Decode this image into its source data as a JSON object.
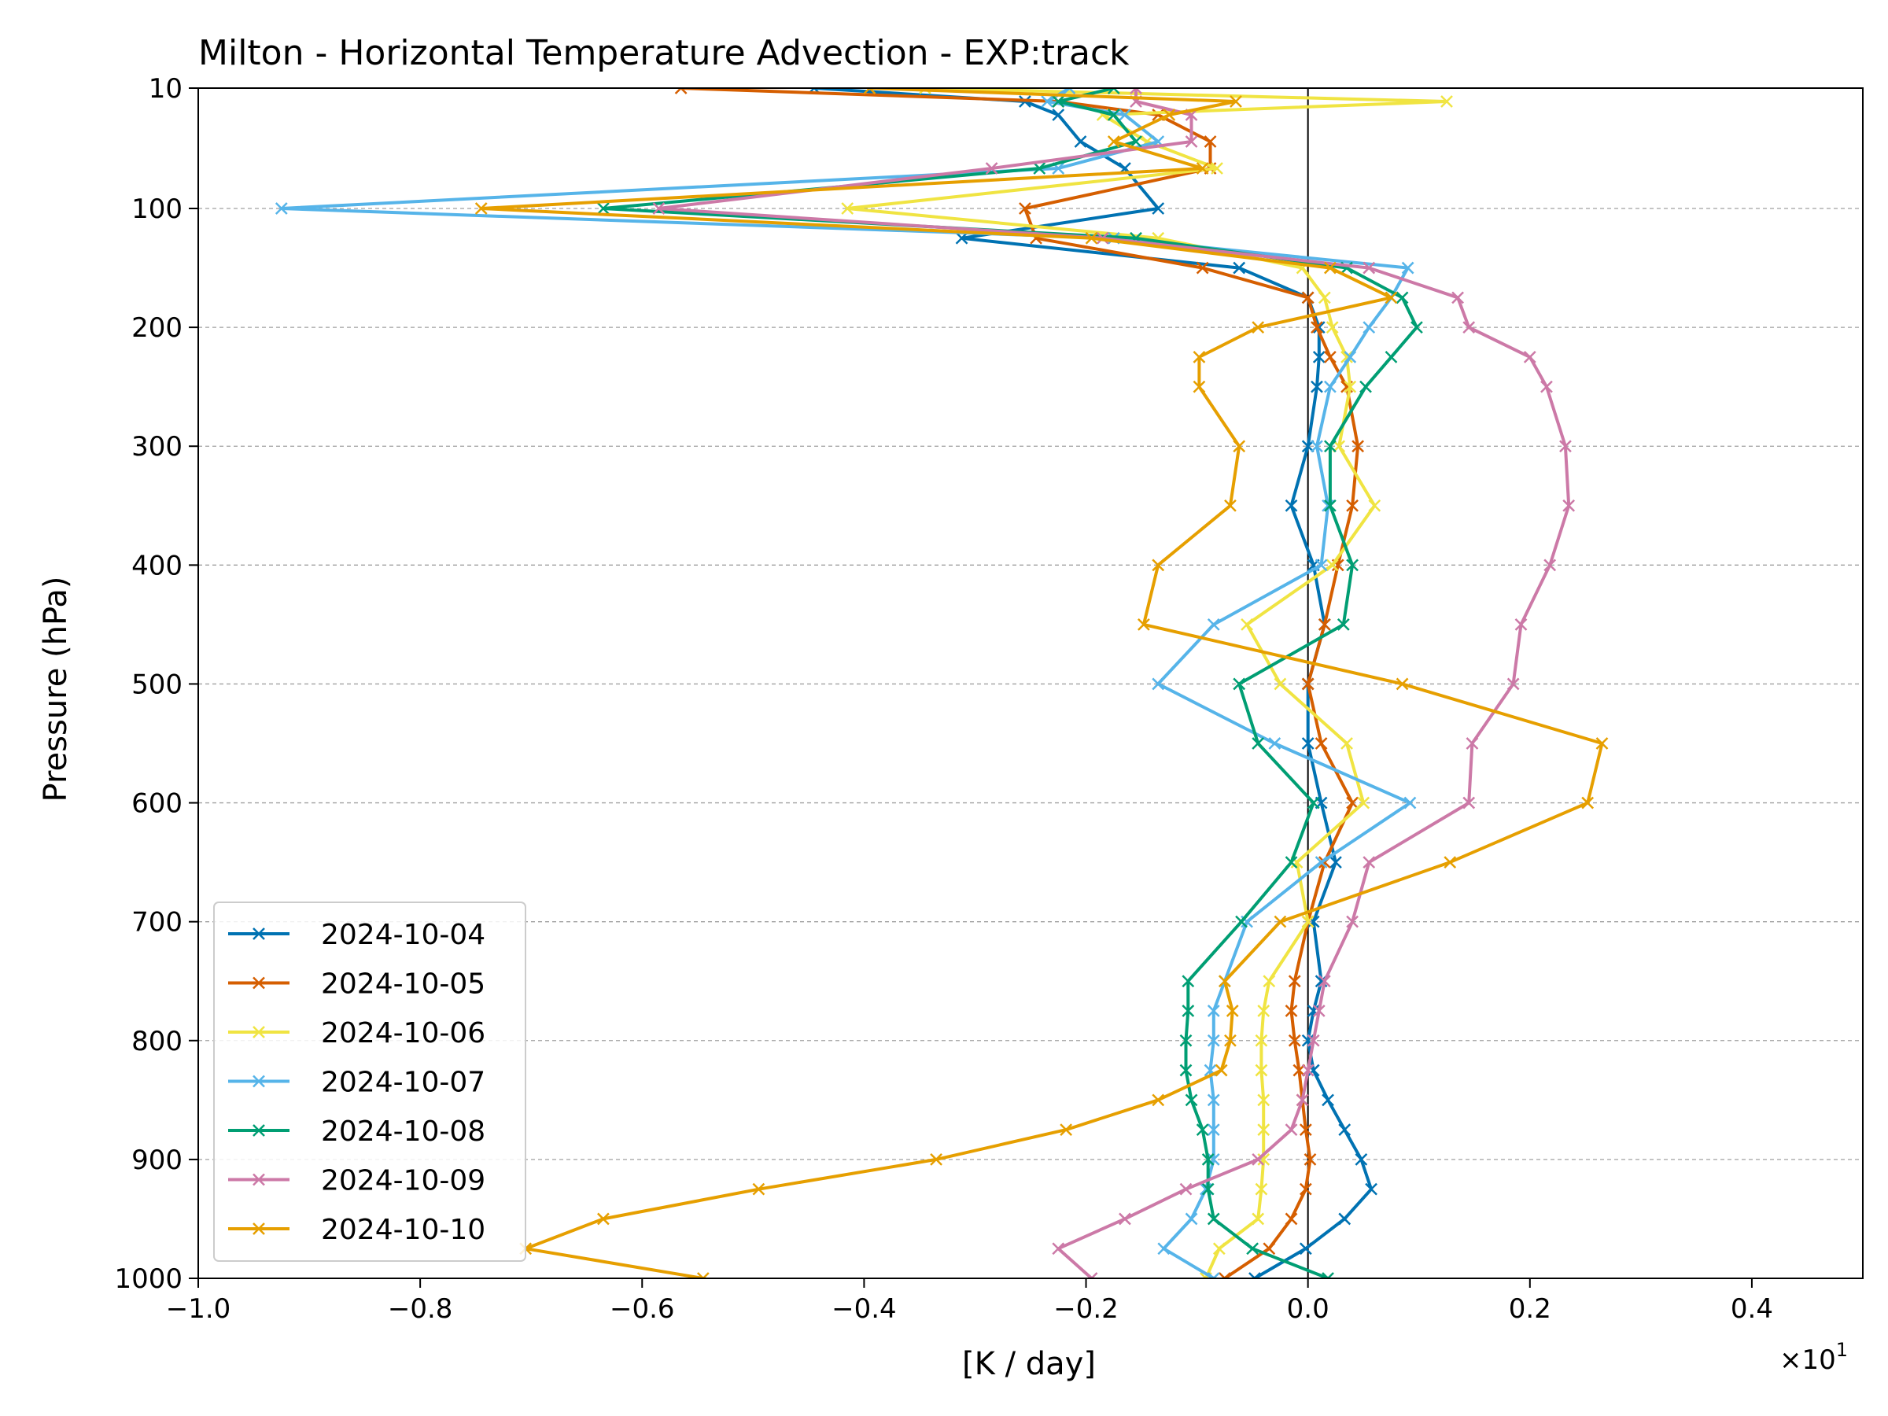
{
  "chart_data": {
    "type": "line",
    "title": "Milton - Horizontal Temperature Advection - EXP:track",
    "xlabel": "[K / day]",
    "ylabel": "Pressure (hPa)",
    "x_multiplier": "×10",
    "x_multiplier_exponent": "1",
    "xlim": [
      -1.0,
      0.5
    ],
    "ylim": [
      1000,
      10
    ],
    "y_inverted": true,
    "xticks": [
      -1.0,
      -0.8,
      -0.6,
      -0.4,
      -0.2,
      0.0,
      0.2,
      0.4
    ],
    "xtick_labels": [
      "−1.0",
      "−0.8",
      "−0.6",
      "−0.4",
      "−0.2",
      "0.0",
      "0.2",
      "0.4"
    ],
    "yticks": [
      10,
      100,
      200,
      300,
      400,
      500,
      600,
      700,
      800,
      900,
      1000
    ],
    "ytick_labels": [
      "10",
      "100",
      "200",
      "300",
      "400",
      "500",
      "600",
      "700",
      "800",
      "900",
      "1000"
    ],
    "grid": "horizontal dashed at y ticks",
    "zero_line": 0.0,
    "marker": "x",
    "legend_position": "lower-left",
    "levels": [
      10,
      20,
      30,
      50,
      70,
      100,
      125,
      150,
      175,
      200,
      225,
      250,
      300,
      350,
      400,
      450,
      500,
      550,
      600,
      650,
      700,
      750,
      775,
      800,
      825,
      850,
      875,
      900,
      925,
      950,
      975,
      1000
    ],
    "series": [
      {
        "name": "2024-10-04",
        "color": "#0072b2",
        "values": [
          -0.445,
          -0.255,
          -0.225,
          -0.205,
          -0.165,
          -0.135,
          -0.312,
          -0.062,
          0.0,
          0.01,
          0.01,
          0.008,
          0.0,
          -0.015,
          0.005,
          0.015,
          0.0,
          0.0,
          0.012,
          0.025,
          0.005,
          0.012,
          0.005,
          0.0,
          0.005,
          0.018,
          0.033,
          0.048,
          0.057,
          0.033,
          -0.002,
          -0.048
        ]
      },
      {
        "name": "2024-10-05",
        "color": "#d55e00",
        "values": [
          -0.565,
          -0.225,
          -0.135,
          -0.088,
          -0.088,
          -0.255,
          -0.245,
          -0.095,
          0.0,
          0.008,
          0.02,
          0.035,
          0.045,
          0.04,
          0.027,
          0.015,
          0.0,
          0.012,
          0.04,
          0.015,
          0.0,
          -0.012,
          -0.015,
          -0.012,
          -0.008,
          -0.005,
          -0.002,
          0.002,
          -0.002,
          -0.015,
          -0.035,
          -0.075
        ]
      },
      {
        "name": "2024-10-06",
        "color": "#f0e442",
        "values": [
          -0.345,
          0.125,
          -0.185,
          -0.145,
          -0.082,
          -0.415,
          -0.135,
          -0.005,
          0.015,
          0.022,
          0.035,
          0.038,
          0.028,
          0.06,
          0.022,
          -0.055,
          -0.025,
          0.035,
          0.05,
          -0.01,
          0.0,
          -0.035,
          -0.04,
          -0.042,
          -0.042,
          -0.04,
          -0.04,
          -0.04,
          -0.042,
          -0.045,
          -0.08,
          -0.092
        ]
      },
      {
        "name": "2024-10-07",
        "color": "#56b4e9",
        "values": [
          -0.215,
          -0.235,
          -0.165,
          -0.135,
          -0.225,
          -0.925,
          -0.175,
          0.09,
          0.075,
          0.055,
          0.038,
          0.02,
          0.008,
          0.018,
          0.012,
          -0.085,
          -0.135,
          -0.03,
          0.092,
          0.012,
          -0.055,
          -0.075,
          -0.085,
          -0.085,
          -0.088,
          -0.085,
          -0.085,
          -0.085,
          -0.092,
          -0.105,
          -0.13,
          -0.085
        ]
      },
      {
        "name": "2024-10-08",
        "color": "#009e73",
        "values": [
          -0.175,
          -0.225,
          -0.175,
          -0.155,
          -0.242,
          -0.635,
          -0.155,
          0.035,
          0.085,
          0.098,
          0.075,
          0.052,
          0.02,
          0.02,
          0.04,
          0.032,
          -0.062,
          -0.045,
          0.005,
          -0.015,
          -0.06,
          -0.108,
          -0.108,
          -0.11,
          -0.11,
          -0.105,
          -0.095,
          -0.09,
          -0.09,
          -0.085,
          -0.05,
          0.018
        ]
      },
      {
        "name": "2024-10-09",
        "color": "#cc79a7",
        "values": [
          -0.155,
          -0.155,
          -0.105,
          -0.105,
          -0.285,
          -0.585,
          -0.185,
          0.055,
          0.135,
          0.145,
          0.2,
          0.215,
          0.232,
          0.235,
          0.218,
          0.192,
          0.185,
          0.148,
          0.145,
          0.055,
          0.04,
          0.015,
          0.01,
          0.005,
          0.0,
          -0.005,
          -0.015,
          -0.045,
          -0.11,
          -0.165,
          -0.225,
          -0.195
        ]
      },
      {
        "name": "2024-10-10",
        "color": "#e69f00",
        "values": [
          -0.395,
          -0.065,
          -0.125,
          -0.175,
          -0.095,
          -0.745,
          -0.195,
          0.02,
          0.075,
          -0.045,
          -0.098,
          -0.098,
          -0.062,
          -0.07,
          -0.135,
          -0.148,
          0.085,
          0.265,
          0.252,
          0.128,
          -0.025,
          -0.075,
          -0.068,
          -0.07,
          -0.078,
          -0.135,
          -0.218,
          -0.335,
          -0.495,
          -0.635,
          -0.705,
          -0.545
        ]
      }
    ]
  }
}
